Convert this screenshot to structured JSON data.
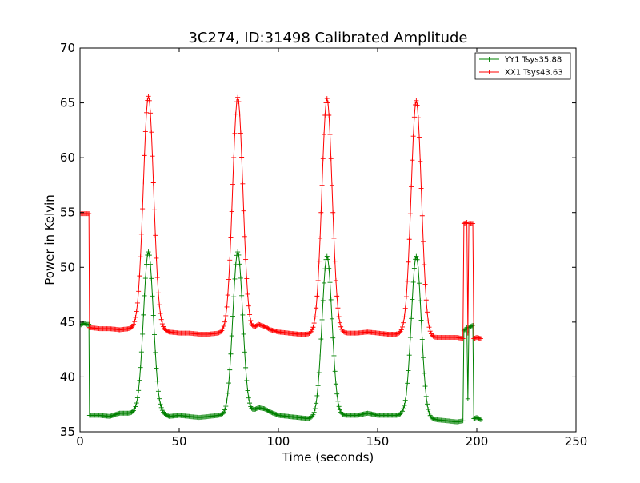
{
  "chart_data": {
    "type": "line",
    "title": "3C274, ID:31498 Calibrated Amplitude",
    "xlabel": "Time (seconds)",
    "ylabel": "Power in Kelvin",
    "xlim": [
      0,
      250
    ],
    "ylim": [
      35,
      70
    ],
    "xticks": [
      0,
      50,
      100,
      150,
      200,
      250
    ],
    "yticks": [
      35,
      40,
      45,
      50,
      55,
      60,
      65,
      70
    ],
    "grid": false,
    "legend_position": "top-right",
    "marker": "+",
    "series": [
      {
        "name": "YY1 Tsys35.88",
        "color": "#008000",
        "base_points": [
          [
            0,
            44.7
          ],
          [
            2,
            44.9
          ],
          [
            3,
            44.8
          ],
          [
            4.5,
            44.8
          ],
          [
            4.8,
            36.5
          ],
          [
            10,
            36.5
          ],
          [
            15,
            36.4
          ],
          [
            20,
            36.7
          ],
          [
            25,
            36.7
          ],
          [
            28,
            36.8
          ],
          [
            41,
            36.7
          ],
          [
            45,
            36.4
          ],
          [
            50,
            36.5
          ],
          [
            55,
            36.4
          ],
          [
            60,
            36.3
          ],
          [
            65,
            36.4
          ],
          [
            70,
            36.5
          ],
          [
            74,
            36.5
          ],
          [
            86,
            36.8
          ],
          [
            90,
            37.2
          ],
          [
            93,
            37.1
          ],
          [
            96,
            36.8
          ],
          [
            100,
            36.5
          ],
          [
            105,
            36.4
          ],
          [
            110,
            36.3
          ],
          [
            115,
            36.2
          ],
          [
            119,
            36.3
          ],
          [
            131,
            36.5
          ],
          [
            135,
            36.5
          ],
          [
            140,
            36.5
          ],
          [
            145,
            36.7
          ],
          [
            150,
            36.5
          ],
          [
            155,
            36.5
          ],
          [
            160,
            36.5
          ],
          [
            163,
            36.6
          ],
          [
            176,
            36.2
          ],
          [
            180,
            36.1
          ],
          [
            185,
            36.0
          ],
          [
            190,
            35.9
          ],
          [
            193,
            36.0
          ],
          [
            193.5,
            44.2
          ],
          [
            195,
            44.5
          ],
          [
            195.5,
            38.0
          ],
          [
            196,
            44.5
          ],
          [
            198,
            44.7
          ],
          [
            198.5,
            36.2
          ],
          [
            200,
            36.3
          ],
          [
            202,
            36.1
          ]
        ],
        "peaks": [
          {
            "center": 34.5,
            "width": 2.5,
            "height": 51.4
          },
          {
            "center": 79.5,
            "width": 2.5,
            "height": 51.4
          },
          {
            "center": 124.5,
            "width": 2.5,
            "height": 51.0
          },
          {
            "center": 169.5,
            "width": 2.5,
            "height": 51.0
          }
        ]
      },
      {
        "name": "XX1 Tsys43.63",
        "color": "#ff0000",
        "base_points": [
          [
            0,
            54.9
          ],
          [
            2,
            54.9
          ],
          [
            4,
            54.9
          ],
          [
            4.5,
            54.9
          ],
          [
            4.8,
            44.5
          ],
          [
            10,
            44.4
          ],
          [
            15,
            44.4
          ],
          [
            20,
            44.3
          ],
          [
            25,
            44.4
          ],
          [
            28,
            44.5
          ],
          [
            41,
            44.3
          ],
          [
            45,
            44.1
          ],
          [
            50,
            44.0
          ],
          [
            55,
            44.0
          ],
          [
            60,
            43.9
          ],
          [
            65,
            43.9
          ],
          [
            70,
            44.0
          ],
          [
            74,
            44.1
          ],
          [
            86,
            44.2
          ],
          [
            90,
            44.8
          ],
          [
            93,
            44.6
          ],
          [
            96,
            44.3
          ],
          [
            100,
            44.1
          ],
          [
            105,
            44.0
          ],
          [
            110,
            43.9
          ],
          [
            115,
            43.9
          ],
          [
            119,
            44.0
          ],
          [
            131,
            44.0
          ],
          [
            135,
            44.0
          ],
          [
            140,
            44.0
          ],
          [
            145,
            44.1
          ],
          [
            150,
            44.0
          ],
          [
            155,
            43.9
          ],
          [
            160,
            43.9
          ],
          [
            163,
            44.0
          ],
          [
            176,
            43.6
          ],
          [
            180,
            43.6
          ],
          [
            185,
            43.6
          ],
          [
            190,
            43.6
          ],
          [
            193,
            43.5
          ],
          [
            193.5,
            54.0
          ],
          [
            195,
            54.1
          ],
          [
            195.5,
            44.0
          ],
          [
            196,
            54.0
          ],
          [
            198,
            54.0
          ],
          [
            198.5,
            43.5
          ],
          [
            200,
            43.6
          ],
          [
            202,
            43.5
          ]
        ],
        "peaks": [
          {
            "center": 34.5,
            "width": 2.6,
            "height": 65.6
          },
          {
            "center": 79.5,
            "width": 2.6,
            "height": 65.5
          },
          {
            "center": 124.5,
            "width": 2.6,
            "height": 65.4
          },
          {
            "center": 169.5,
            "width": 2.6,
            "height": 65.2
          }
        ]
      }
    ]
  }
}
